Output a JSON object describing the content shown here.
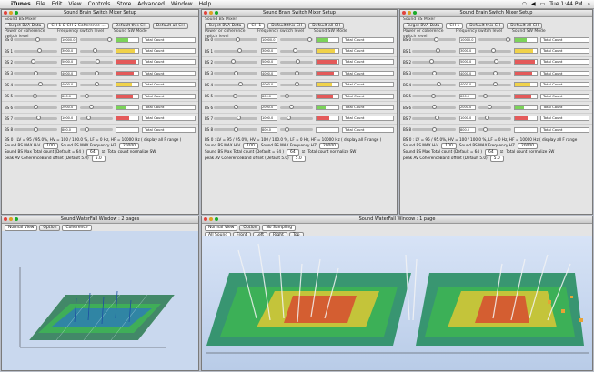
{
  "menubar": {
    "app": "iTunes",
    "items": [
      "File",
      "Edit",
      "View",
      "Controls",
      "Store",
      "Advanced",
      "Window",
      "Help"
    ],
    "clock": "Tue 1:44 PM"
  },
  "mixer_windows": [
    {
      "title": "Sound Brain Switch Mixer Setup",
      "subtitle": "Sound BS Mixer",
      "target": "Target BVA Data",
      "channel_select": "CH 1 & CH 2 Coherence ...",
      "default_this": "Default this CH",
      "default_all": "Default all CH",
      "col_level": "Power or coherence switch level",
      "col_freq": "Frequency switch level",
      "col_mode": "Sound SW Mode",
      "footer_line1": "BS 0 : LV = 95 / 95.0%, HV = 100 / 100.0 %, LF = 0 Hz, HF = 10000 Hz ( display all F range )",
      "max_label": "Sound BS MAX H-V",
      "max_value": "100",
      "freq_label": "Sound BS MAX Frequency HZ",
      "freq_value": "20000",
      "total_label": "Sound BS Max Total count (Default = 64 )",
      "total_value": "64",
      "normalize_label": "Total count normalize SW",
      "coh_label": "peak AV CoherenceBand offset (Default 5.0)",
      "coh_value": "5.0"
    },
    {
      "title": "Sound Brain Switch Mixer Setup",
      "subtitle": "Sound BS Mixer",
      "target": "Target BVA Data",
      "channel_select": "CH 1",
      "default_this": "Default this CH",
      "default_all": "Default all CH",
      "col_level": "Power or coherence switch level",
      "col_freq": "Frequency switch level",
      "col_mode": "Sound SW Mode",
      "footer_line1": "BS 0 : LV = 95 / 95.0%, HV = 100 / 100.0 %, LF = 0 Hz, HF = 10000 Hz ( display all F range )",
      "max_label": "Sound BS MAX H-V",
      "max_value": "100",
      "freq_label": "Sound BS MAX Frequency HZ",
      "freq_value": "20000",
      "total_label": "Sound BS Max Total count (Default = 64 )",
      "total_value": "64",
      "normalize_label": "Total count normalize SW",
      "coh_label": "peak AV CoherenceBand offset (Default 5.0)",
      "coh_value": "5.0"
    },
    {
      "title": "Sound Brain Switch Mixer Setup",
      "subtitle": "Sound BS Mixer",
      "target": "Target BVA Data",
      "channel_select": "CH 1",
      "default_this": "Default this CH",
      "default_all": "Default all CH",
      "col_level": "Power or coherence switch level",
      "col_freq": "Frequency switch level",
      "col_mode": "Sound SW Mode",
      "footer_line1": "BS 0 : LV = 95 / 95.0%, HV = 100 / 100.0 %, LF = 0 Hz, HF = 10000 Hz ( display all F range )",
      "max_label": "Sound BS MAX H-V",
      "max_value": "100",
      "freq_label": "Sound BS MAX Frequency HZ",
      "freq_value": "20000",
      "total_label": "Sound BS Max Total count (Default = 64 )",
      "total_value": "64",
      "normalize_label": "Total count normalize SW",
      "coh_label": "peak AV CoherenceBand offset (Default 5.0)",
      "coh_value": "5.0"
    }
  ],
  "channel_rows": [
    {
      "label": "BS 0",
      "level": 0.55,
      "freq": "10000.0",
      "fpos": 0.9,
      "meter": 0.55,
      "mcolor": "#7cd35a",
      "mode": "Total Count"
    },
    {
      "label": "BS 1",
      "level": 0.6,
      "freq": "3000.0",
      "fpos": 0.45,
      "meter": 0.85,
      "mcolor": "#f0d24a",
      "mode": "Total Count"
    },
    {
      "label": "BS 2",
      "level": 0.45,
      "freq": "5000.0",
      "fpos": 0.55,
      "meter": 0.9,
      "mcolor": "#e45a5a",
      "mode": "Total Count"
    },
    {
      "label": "BS 3",
      "level": 0.5,
      "freq": "4000.0",
      "fpos": 0.5,
      "meter": 0.8,
      "mcolor": "#e45a5a",
      "mode": "Total Count"
    },
    {
      "label": "BS 4",
      "level": 0.62,
      "freq": "4000.0",
      "fpos": 0.5,
      "meter": 0.7,
      "mcolor": "#f0d24a",
      "mode": "Total Count"
    },
    {
      "label": "BS 5",
      "level": 0.48,
      "freq": "800.0",
      "fpos": 0.2,
      "meter": 0.75,
      "mcolor": "#e45a5a",
      "mode": "Total Count"
    },
    {
      "label": "BS 6",
      "level": 0.52,
      "freq": "2000.0",
      "fpos": 0.35,
      "meter": 0.4,
      "mcolor": "#7cd35a",
      "mode": "Total Count"
    },
    {
      "label": "BS 7",
      "level": 0.58,
      "freq": "1000.0",
      "fpos": 0.25,
      "meter": 0.6,
      "mcolor": "#e45a5a",
      "mode": "Total Count"
    },
    {
      "label": "BS 8",
      "level": 0.5,
      "freq": "800.0",
      "fpos": 0.2,
      "meter": 0.0,
      "mcolor": "#7cd35a",
      "mode": "Total Count"
    }
  ],
  "waterfall_windows": [
    {
      "title": "Sound WaterFall Window : 2 pages",
      "select": "Normal View",
      "option": "Option",
      "select2": "Coherence",
      "no_sampling": "No Sampling",
      "front": "Front",
      "left": "Left",
      "right": "Right",
      "top": "Top"
    },
    {
      "title": "Sound WaterFall Window : 1 page",
      "select": "Normal View",
      "option": "Option",
      "select2": "All Sound",
      "no_sampling": "No Sampling",
      "front": "Front",
      "left": "Left",
      "right": "Right",
      "top": "Top"
    }
  ]
}
